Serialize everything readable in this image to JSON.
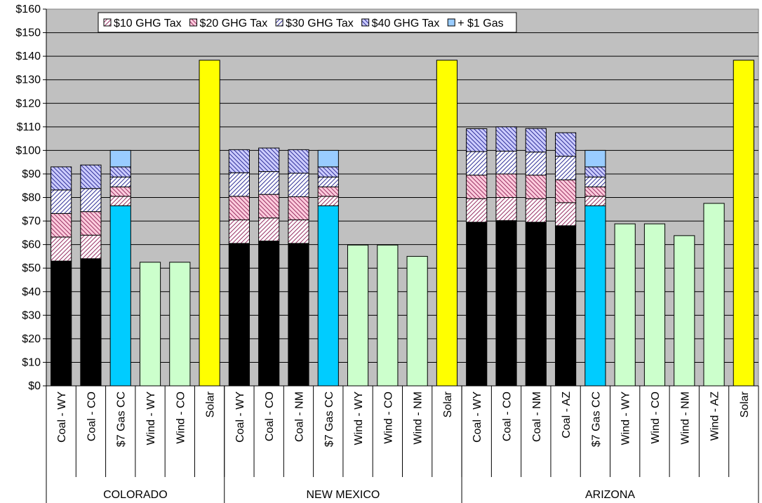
{
  "chart_data": {
    "type": "bar",
    "stacked": true,
    "title": "",
    "xlabel": "",
    "ylabel": "",
    "ylim": [
      0,
      160
    ],
    "y_tick_step": 10,
    "y_tick_format": "$",
    "grid": true,
    "legend_position": "top",
    "legend": [
      {
        "key": "tax10",
        "label": "$10 GHG Tax"
      },
      {
        "key": "tax20",
        "label": "$20 GHG Tax"
      },
      {
        "key": "tax30",
        "label": "$30 GHG Tax"
      },
      {
        "key": "tax40",
        "label": "$40 GHG Tax"
      },
      {
        "key": "gas1",
        "label": "+ $1 Gas"
      }
    ],
    "groups": [
      {
        "name": "COLORADO",
        "bars": [
          {
            "label": "Coal - WY",
            "kind": "coal",
            "base": 53,
            "tax10": 10.2,
            "tax20": 10,
            "tax30": 10,
            "tax40": 9.8
          },
          {
            "label": "Coal - CO",
            "kind": "coal",
            "base": 54,
            "tax10": 10,
            "tax20": 10,
            "tax30": 9.8,
            "tax40": 10
          },
          {
            "label": "$7 Gas CC",
            "kind": "gas",
            "base": 76.5,
            "tax10": 4,
            "tax20": 4,
            "tax30": 4.2,
            "tax40": 4.3,
            "gas1": 7
          }
        ]
      },
      {
        "name": "",
        "bars": [
          {
            "label": "Wind - WY",
            "kind": "wind",
            "base": 52.5
          },
          {
            "label": "Wind - CO",
            "kind": "wind",
            "base": 52.5
          },
          {
            "label": "Solar",
            "kind": "solar",
            "base": 138.3
          }
        ]
      },
      {
        "name": "NEW MEXICO",
        "bars": [
          {
            "label": "Coal - WY",
            "kind": "coal",
            "base": 60.5,
            "tax10": 10,
            "tax20": 10,
            "tax30": 10,
            "tax40": 9.8
          },
          {
            "label": "Coal - CO",
            "kind": "coal",
            "base": 61.5,
            "tax10": 9.8,
            "tax20": 10,
            "tax30": 9.7,
            "tax40": 10
          },
          {
            "label": "Coal - NM",
            "kind": "coal",
            "base": 60.5,
            "tax10": 10,
            "tax20": 9.8,
            "tax30": 10,
            "tax40": 10
          },
          {
            "label": "$7 Gas CC",
            "kind": "gas",
            "base": 76.5,
            "tax10": 4,
            "tax20": 4,
            "tax30": 4.2,
            "tax40": 4.3,
            "gas1": 7
          }
        ]
      },
      {
        "name": "",
        "bars": [
          {
            "label": "Wind - WY",
            "kind": "wind",
            "base": 59.8
          },
          {
            "label": "Wind - CO",
            "kind": "wind",
            "base": 59.8
          },
          {
            "label": "Wind - NM",
            "kind": "wind",
            "base": 55
          },
          {
            "label": "Solar",
            "kind": "solar",
            "base": 138.3
          }
        ]
      },
      {
        "name": "ARIZONA",
        "bars": [
          {
            "label": "Coal - WY",
            "kind": "coal",
            "base": 69.5,
            "tax10": 10,
            "tax20": 10,
            "tax30": 10,
            "tax40": 9.7
          },
          {
            "label": "Coal - CO",
            "kind": "coal",
            "base": 70.2,
            "tax10": 9.8,
            "tax20": 10,
            "tax30": 9.7,
            "tax40": 10.3
          },
          {
            "label": "Coal - NM",
            "kind": "coal",
            "base": 69.5,
            "tax10": 10,
            "tax20": 10,
            "tax30": 9.8,
            "tax40": 10
          },
          {
            "label": "Coal - AZ",
            "kind": "coal",
            "base": 68,
            "tax10": 9.8,
            "tax20": 9.7,
            "tax30": 10,
            "tax40": 10
          },
          {
            "label": "$7 Gas CC",
            "kind": "gas",
            "base": 76.5,
            "tax10": 4,
            "tax20": 4,
            "tax30": 4.2,
            "tax40": 4.3,
            "gas1": 7
          },
          {
            "label": "Wind - WY",
            "kind": "wind",
            "base": 68.8
          },
          {
            "label": "Wind - CO",
            "kind": "wind",
            "base": 68.8
          },
          {
            "label": "Wind - NM",
            "kind": "wind",
            "base": 63.8
          },
          {
            "label": "Wind - AZ",
            "kind": "wind",
            "base": 77.5
          },
          {
            "label": "Solar",
            "kind": "solar",
            "base": 138.3
          }
        ]
      }
    ],
    "colors": {
      "plot_bg": "#c0c0c0",
      "coal": "#000000",
      "gas": "#00ccff",
      "wind": "#ccffcc",
      "solar": "#ffff00",
      "tax10": "#ffffff",
      "tax20": "#ffccdd",
      "tax30": "#ffffff",
      "tax40": "#ccccff",
      "gas1": "#99ccff",
      "hatch_red": "#993366",
      "hatch_blue": "#333399"
    }
  }
}
